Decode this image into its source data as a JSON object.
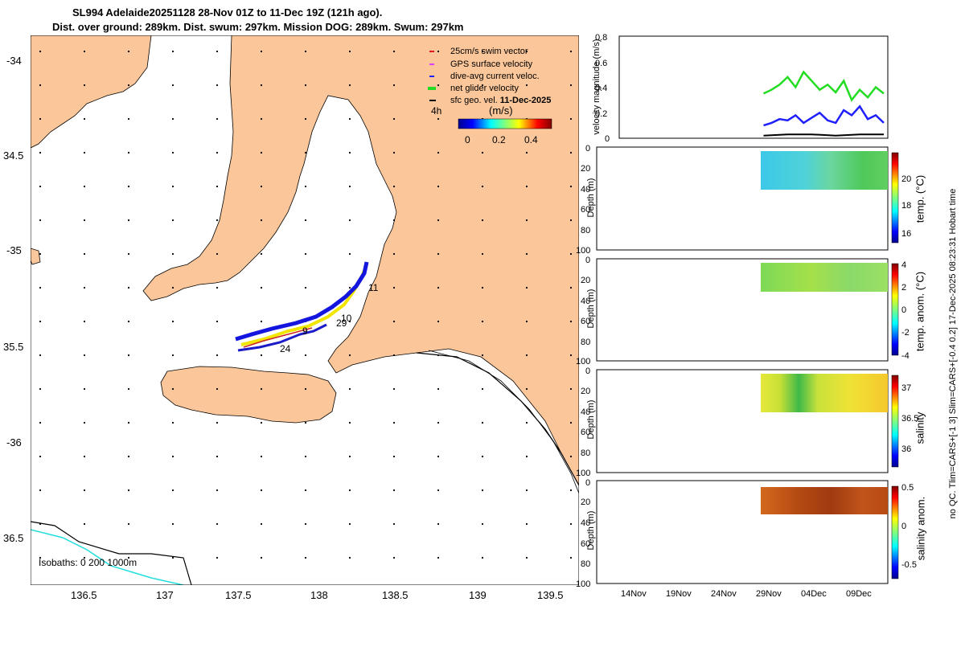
{
  "title": {
    "line1": "SL994 Adelaide20251128 28-Nov 01Z to 11-Dec 19Z (121h ago).",
    "line2": "Dist. over ground: 289km. Dist. swum: 297km. Mission DOG: 289km. Swum: 297km"
  },
  "map": {
    "lat_ticks": [
      "-34",
      "34.5",
      "-35",
      "35.5",
      "-36",
      "36.5"
    ],
    "lon_ticks": [
      "136.5",
      "137",
      "137.5",
      "138",
      "138.5",
      "139",
      "139.5"
    ],
    "isobaths_label": "Isobaths: 0    200   1000m",
    "legend": {
      "items": [
        {
          "label": "25cm/s swim vector",
          "color": "#e31a1c"
        },
        {
          "label": "GPS surface velocity",
          "color": "#e040fb"
        },
        {
          "label": "dive-avg current veloc.",
          "color": "#1f1fff"
        },
        {
          "label": "net glider velocity",
          "color": "#22dd22"
        },
        {
          "label": "sfc geo. vel. ",
          "bold": "11-Dec-2025",
          "color": "#000000"
        }
      ],
      "time_label": "4h",
      "colorbar_title": "(m/s)",
      "colorbar_ticks": [
        "0",
        "0.2",
        "0.4"
      ]
    },
    "track_labels": [
      "11",
      "10",
      "29",
      "9",
      "24"
    ]
  },
  "panels": {
    "velocity": {
      "ylabel": "velocity magnitude (m/s)",
      "yticks": [
        "0.8",
        "0.6",
        "0.4",
        "0.2",
        "0"
      ]
    },
    "temp": {
      "ylabel": "Depth (m)",
      "yticks": [
        "0",
        "20",
        "40",
        "60",
        "80",
        "100"
      ],
      "cbar_label": "temp. (°C)",
      "cbar_ticks": [
        "20",
        "18",
        "16"
      ]
    },
    "temp_anom": {
      "ylabel": "Depth (m)",
      "yticks": [
        "0",
        "20",
        "40",
        "60",
        "80",
        "100"
      ],
      "cbar_label": "temp. anom. (°C)",
      "cbar_ticks": [
        "4",
        "2",
        "0",
        "-2",
        "-4"
      ]
    },
    "salinity": {
      "ylabel": "Depth (m)",
      "yticks": [
        "0",
        "20",
        "40",
        "60",
        "80",
        "100"
      ],
      "cbar_label": "salinity",
      "cbar_ticks": [
        "37",
        "36.5",
        "36"
      ]
    },
    "sal_anom": {
      "ylabel": "Depth (m)",
      "yticks": [
        "0",
        "20",
        "40",
        "60",
        "80",
        "100"
      ],
      "cbar_label": "salinity anom.",
      "cbar_ticks": [
        "0.5",
        "0",
        "-0.5"
      ]
    },
    "xticks": [
      "14Nov",
      "19Nov",
      "24Nov",
      "29Nov",
      "04Dec",
      "09Dec"
    ]
  },
  "side_note": "no QC. Tlim=CARS+[-1 3] Slim=CARS+[-0.4 0.2] 17-Dec-2025 08:23:31 Hobart time",
  "chart_data": [
    {
      "type": "line",
      "title": "velocity magnitude",
      "ylabel": "velocity magnitude (m/s)",
      "ylim": [
        0,
        0.8
      ],
      "x_range": [
        "11-Nov",
        "14-Dec"
      ],
      "series": [
        {
          "name": "net glider velocity",
          "color": "#22dd22",
          "x": [
            29,
            30,
            31,
            32,
            33,
            34,
            35,
            36,
            37,
            38,
            39,
            40,
            41,
            42,
            43,
            44
          ],
          "values": [
            0.35,
            0.38,
            0.42,
            0.48,
            0.4,
            0.52,
            0.45,
            0.38,
            0.42,
            0.36,
            0.45,
            0.3,
            0.38,
            0.32,
            0.4,
            0.35
          ]
        },
        {
          "name": "dive-avg current veloc.",
          "color": "#1f1fff",
          "x": [
            29,
            30,
            31,
            32,
            33,
            34,
            35,
            36,
            37,
            38,
            39,
            40,
            41,
            42,
            43,
            44
          ],
          "values": [
            0.1,
            0.12,
            0.15,
            0.14,
            0.18,
            0.12,
            0.16,
            0.2,
            0.14,
            0.12,
            0.22,
            0.18,
            0.25,
            0.15,
            0.18,
            0.12
          ]
        },
        {
          "name": "sfc geo. vel.",
          "color": "#000000",
          "x": [
            29,
            32,
            35,
            38,
            41,
            44
          ],
          "values": [
            0.02,
            0.03,
            0.03,
            0.02,
            0.03,
            0.03
          ]
        }
      ]
    },
    {
      "type": "heatmap",
      "title": "temp. (°C)",
      "ylabel": "Depth (m)",
      "ylim": [
        100,
        0
      ],
      "clim": [
        15.5,
        21.5
      ],
      "depth_range": [
        2,
        38
      ],
      "x_range_days": [
        29,
        44
      ]
    },
    {
      "type": "heatmap",
      "title": "temp. anom. (°C)",
      "ylabel": "Depth (m)",
      "ylim": [
        100,
        0
      ],
      "clim": [
        -4,
        4
      ],
      "depth_range": [
        2,
        30
      ],
      "x_range_days": [
        29,
        44
      ]
    },
    {
      "type": "heatmap",
      "title": "salinity",
      "ylabel": "Depth (m)",
      "ylim": [
        100,
        0
      ],
      "clim": [
        35.8,
        37.2
      ],
      "depth_range": [
        2,
        38
      ],
      "x_range_days": [
        29,
        44
      ]
    },
    {
      "type": "heatmap",
      "title": "salinity anom.",
      "ylabel": "Depth (m)",
      "ylim": [
        100,
        0
      ],
      "clim": [
        -0.7,
        0.5
      ],
      "depth_range": [
        5,
        30
      ],
      "x_range_days": [
        29,
        44
      ]
    }
  ]
}
